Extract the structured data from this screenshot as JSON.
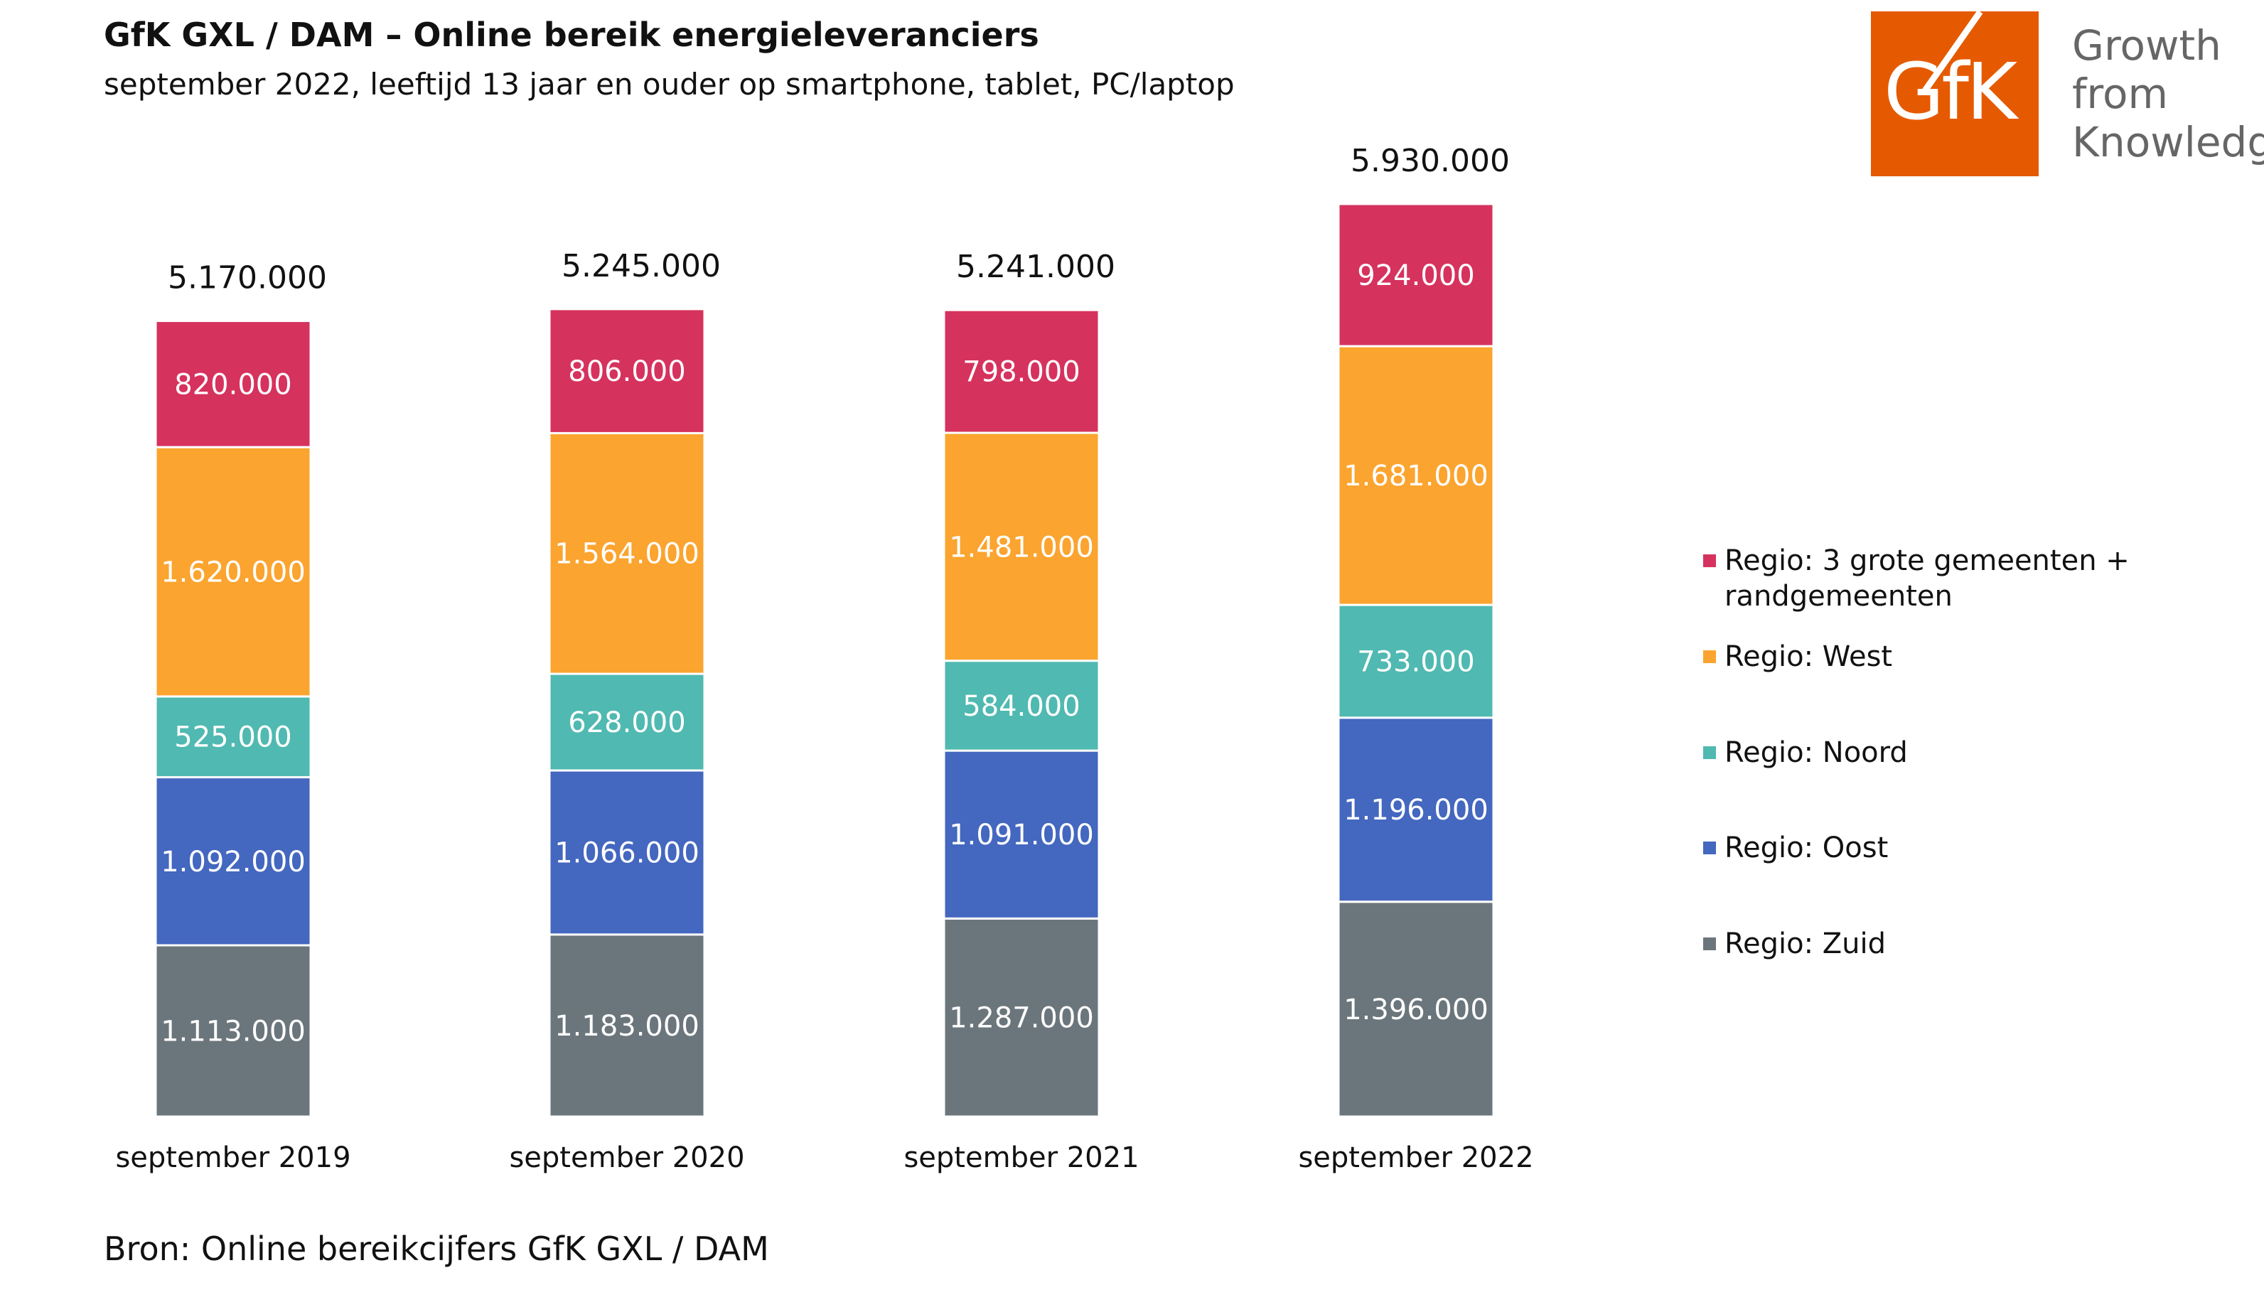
{
  "header": {
    "title": "GfK GXL / DAM – Online bereik energieleveranciers",
    "subtitle": "september 2022, leeftijd 13 jaar en ouder op smartphone, tablet, PC/laptop"
  },
  "footer": {
    "source": "Bron: Online bereikcijfers GfK GXL / DAM"
  },
  "logo": {
    "mark": "GfK",
    "line1": "Growth",
    "line2": "from",
    "line3": "Knowledge",
    "color": "#e55a00"
  },
  "chart_data": {
    "type": "bar",
    "stacked": true,
    "categories": [
      "september 2019",
      "september 2020",
      "september 2021",
      "september 2022"
    ],
    "totals": [
      5170000,
      5245000,
      5241000,
      5930000
    ],
    "total_labels": [
      "5.170.000",
      "5.245.000",
      "5.241.000",
      "5.930.000"
    ],
    "series": [
      {
        "name": "Regio: Zuid",
        "color": "#6b767c",
        "values": [
          1113000,
          1183000,
          1287000,
          1396000
        ],
        "labels": [
          "1.113.000",
          "1.183.000",
          "1.287.000",
          "1.396.000"
        ]
      },
      {
        "name": "Regio: Oost",
        "color": "#4467bf",
        "values": [
          1092000,
          1066000,
          1091000,
          1196000
        ],
        "labels": [
          "1.092.000",
          "1.066.000",
          "1.091.000",
          "1.196.000"
        ]
      },
      {
        "name": "Regio: Noord",
        "color": "#50b9b1",
        "values": [
          525000,
          628000,
          584000,
          733000
        ],
        "labels": [
          "525.000",
          "628.000",
          "584.000",
          "733.000"
        ]
      },
      {
        "name": "Regio: West",
        "color": "#fba42f",
        "values": [
          1620000,
          1564000,
          1481000,
          1681000
        ],
        "labels": [
          "1.620.000",
          "1.564.000",
          "1.481.000",
          "1.681.000"
        ]
      },
      {
        "name": "Regio: 3 grote gemeenten + randgemeenten",
        "color": "#d6325e",
        "values": [
          820000,
          806000,
          798000,
          924000
        ],
        "labels": [
          "820.000",
          "806.000",
          "798.000",
          "924.000"
        ]
      }
    ],
    "legend": {
      "position": "right",
      "order": [
        4,
        3,
        2,
        1,
        0
      ],
      "entries": [
        {
          "series": 4,
          "line1": "Regio: 3 grote gemeenten +",
          "line2": "randgemeenten"
        },
        {
          "series": 3,
          "line1": "Regio: West",
          "line2": ""
        },
        {
          "series": 2,
          "line1": "Regio: Noord",
          "line2": ""
        },
        {
          "series": 1,
          "line1": "Regio: Oost",
          "line2": ""
        },
        {
          "series": 0,
          "line1": "Regio: Zuid",
          "line2": ""
        }
      ]
    },
    "grid": false
  }
}
